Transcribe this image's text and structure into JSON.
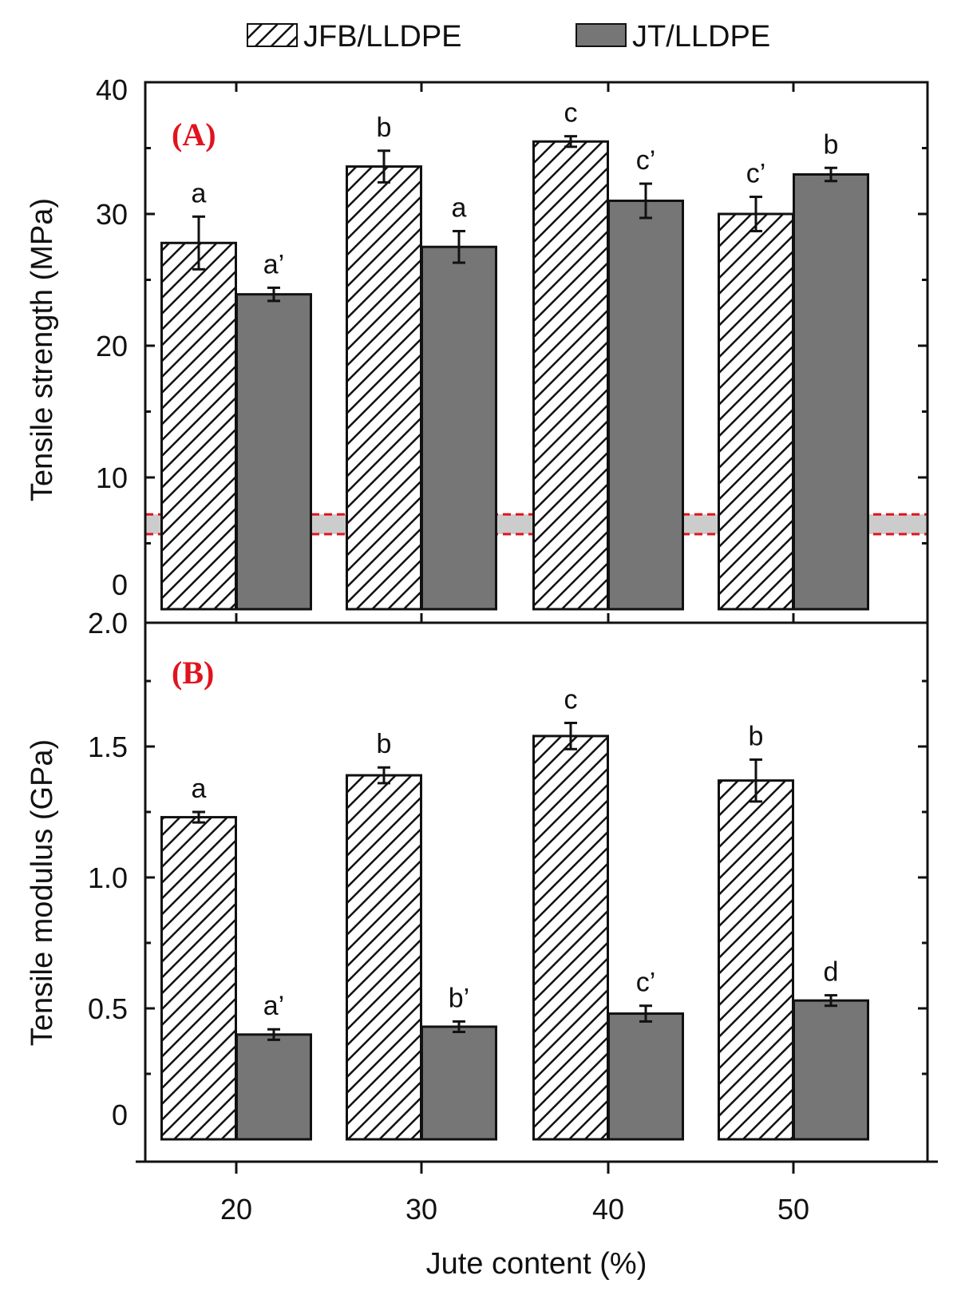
{
  "legend": {
    "jfb_label": "JFB/LLDPE",
    "jt_label": "JT/LLDPE"
  },
  "colors": {
    "jt_fill": "#767676",
    "band_fill": "#cccccc",
    "band_line": "#e0141e",
    "panel_label": "#e0141e"
  },
  "chart_data": [
    {
      "type": "bar",
      "panel_label": "(A)",
      "title": "",
      "xlabel": "",
      "ylabel": "Tensile strength (MPa)",
      "ylim": [
        0,
        40
      ],
      "yticks": [
        "0",
        "10",
        "20",
        "30",
        "40"
      ],
      "categories": [
        "20",
        "30",
        "40",
        "50"
      ],
      "series": [
        {
          "name": "JFB/LLDPE",
          "pattern": "hatched",
          "values": [
            27.8,
            33.6,
            35.5,
            30.0
          ],
          "errors": [
            2.0,
            1.2,
            0.4,
            1.3
          ],
          "labels": [
            "a",
            "b",
            "c",
            "c’"
          ]
        },
        {
          "name": "JT/LLDPE",
          "pattern": "solid-gray",
          "values": [
            23.9,
            27.5,
            31.0,
            33.0
          ],
          "errors": [
            0.5,
            1.2,
            1.3,
            0.5
          ],
          "labels": [
            "a’",
            "a",
            "c’",
            "b"
          ]
        }
      ],
      "reference_band": {
        "low": 5.7,
        "high": 7.2
      }
    },
    {
      "type": "bar",
      "panel_label": "(B)",
      "title": "",
      "xlabel": "Jute content (%)",
      "ylabel": "Tensile modulus (GPa)",
      "ylim": [
        0,
        2.0
      ],
      "yticks": [
        "0",
        "0.5",
        "1.0",
        "1.5",
        "2.0"
      ],
      "categories": [
        "20",
        "30",
        "40",
        "50"
      ],
      "series": [
        {
          "name": "JFB/LLDPE",
          "pattern": "hatched",
          "values": [
            1.23,
            1.39,
            1.54,
            1.37
          ],
          "errors": [
            0.02,
            0.03,
            0.05,
            0.08
          ],
          "labels": [
            "a",
            "b",
            "c",
            "b"
          ]
        },
        {
          "name": "JT/LLDPE",
          "pattern": "solid-gray",
          "values": [
            0.4,
            0.43,
            0.48,
            0.53
          ],
          "errors": [
            0.02,
            0.02,
            0.03,
            0.02
          ],
          "labels": [
            "a’",
            "b’",
            "c’",
            "d"
          ]
        }
      ]
    }
  ]
}
